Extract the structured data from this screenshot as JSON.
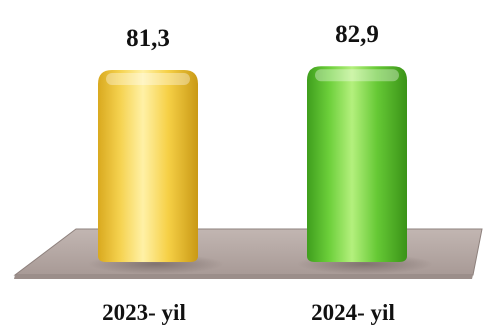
{
  "chart_data": {
    "type": "bar",
    "categories": [
      "2023- yil",
      "2024- yil"
    ],
    "values": [
      81.3,
      82.9
    ],
    "value_labels": [
      "81,3",
      "82,9"
    ],
    "title": "",
    "xlabel": "",
    "ylabel": "",
    "ylim": [
      0,
      100
    ],
    "grid": false,
    "legend": "none",
    "style": "3d-cylinder",
    "colors": {
      "bar_1": "#f5d04a",
      "bar_2": "#6fcf3f",
      "floor": "#b3a6a2"
    }
  }
}
